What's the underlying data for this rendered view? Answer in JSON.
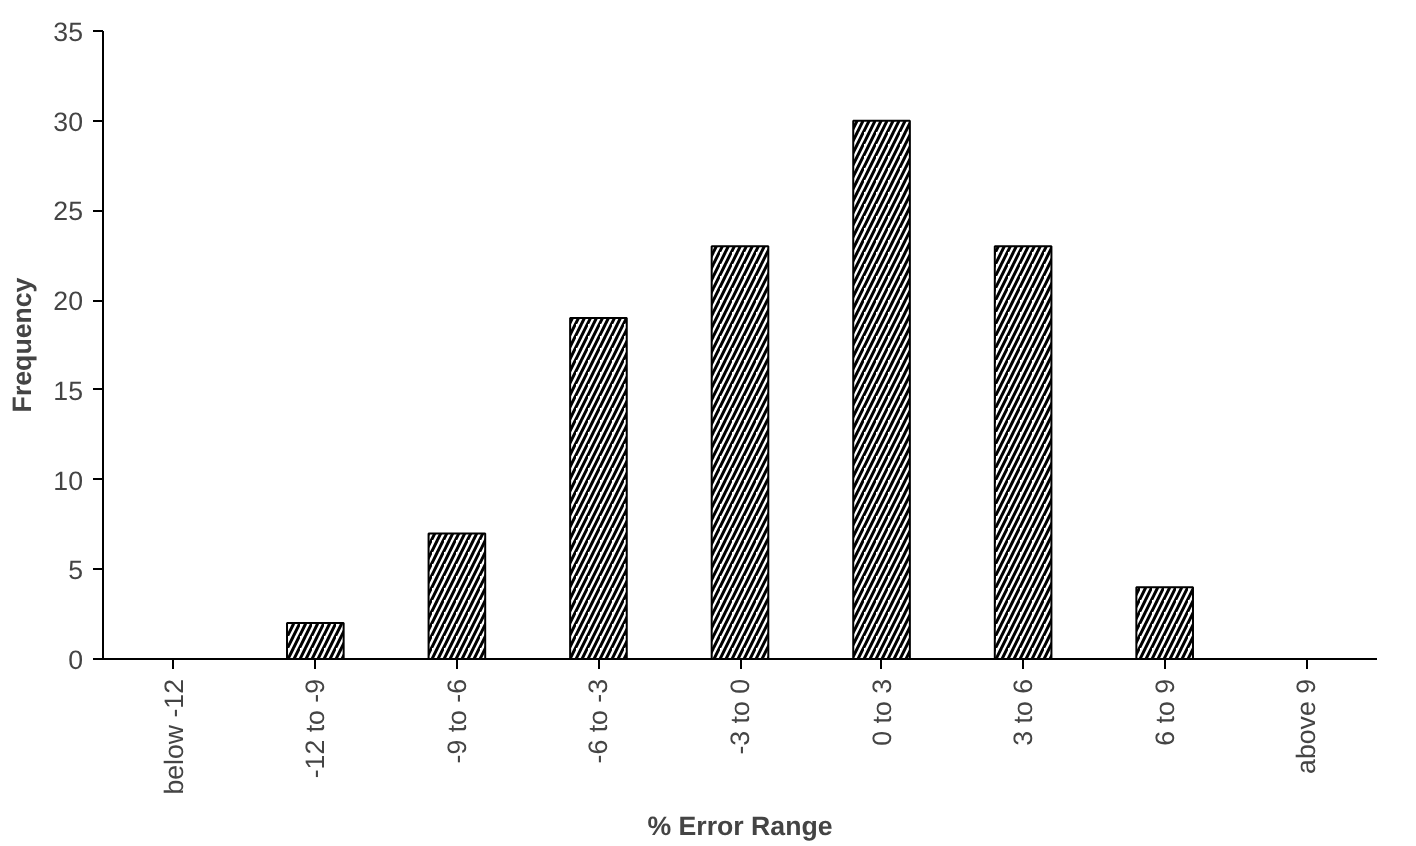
{
  "chart_data": {
    "type": "bar",
    "xlabel": "% Error Range",
    "ylabel": "Frequency",
    "categories": [
      "below -12",
      "-12 to -9",
      "-9 to -6",
      "-6 to -3",
      "-3 to 0",
      "0 to 3",
      "3 to 6",
      "6 to 9",
      "above 9"
    ],
    "values": [
      0,
      2,
      7,
      19,
      23,
      30,
      23,
      4,
      0
    ],
    "color": "#000000",
    "ylim": [
      0,
      35
    ],
    "yticks": [
      0,
      5,
      10,
      15,
      20,
      25,
      30,
      35
    ],
    "grid": false
  }
}
